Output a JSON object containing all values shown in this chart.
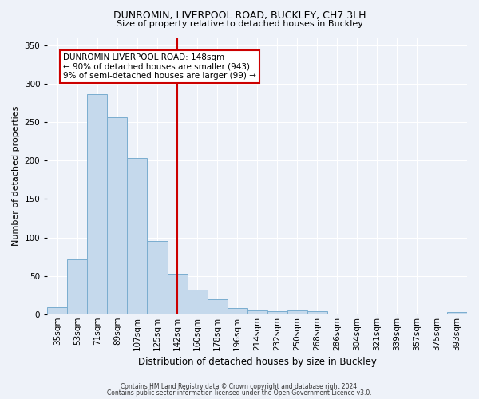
{
  "title1": "DUNROMIN, LIVERPOOL ROAD, BUCKLEY, CH7 3LH",
  "title2": "Size of property relative to detached houses in Buckley",
  "xlabel": "Distribution of detached houses by size in Buckley",
  "ylabel": "Number of detached properties",
  "footnote1": "Contains HM Land Registry data © Crown copyright and database right 2024.",
  "footnote2": "Contains public sector information licensed under the Open Government Licence v3.0.",
  "categories": [
    "35sqm",
    "53sqm",
    "71sqm",
    "89sqm",
    "107sqm",
    "125sqm",
    "142sqm",
    "160sqm",
    "178sqm",
    "196sqm",
    "214sqm",
    "232sqm",
    "250sqm",
    "268sqm",
    "286sqm",
    "304sqm",
    "321sqm",
    "339sqm",
    "357sqm",
    "375sqm",
    "393sqm"
  ],
  "values": [
    9,
    71,
    287,
    257,
    204,
    95,
    53,
    32,
    20,
    8,
    5,
    4,
    5,
    4,
    0,
    0,
    0,
    0,
    0,
    0,
    3
  ],
  "bar_color": "#c5d9ec",
  "bar_edge_color": "#7aadcf",
  "vline_color": "#cc0000",
  "vline_x_index": 6,
  "annotation_text": "DUNROMIN LIVERPOOL ROAD: 148sqm\n← 90% of detached houses are smaller (943)\n9% of semi-detached houses are larger (99) →",
  "annotation_box_color": "#ffffff",
  "annotation_box_edge_color": "#cc0000",
  "ylim": [
    0,
    360
  ],
  "yticks": [
    0,
    50,
    100,
    150,
    200,
    250,
    300,
    350
  ],
  "bg_color": "#eef2f9",
  "plot_bg_color": "#eef2f9",
  "title1_fontsize": 9,
  "title2_fontsize": 8,
  "ylabel_fontsize": 8,
  "xlabel_fontsize": 8.5,
  "tick_fontsize": 7.5,
  "annot_fontsize": 7.5,
  "footnote_fontsize": 5.5
}
